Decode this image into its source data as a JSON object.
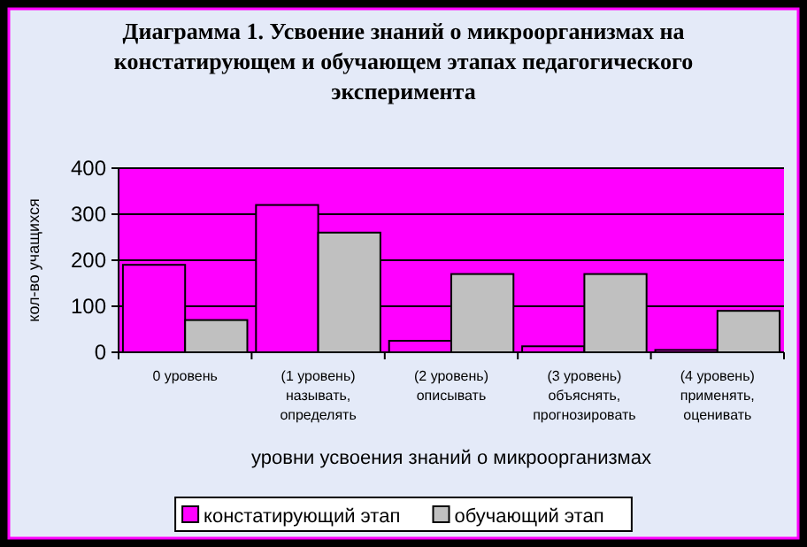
{
  "chart_data": {
    "type": "bar",
    "title": "Диаграмма 1. Усвоение знаний о микроорганизмах на констатирующем и обучающем этапах педагогического эксперимента",
    "xlabel": "уровни усвоения знаний о микроорганизмах",
    "ylabel": "кол-во учащихся",
    "categories": [
      "0 уровень",
      "(1 уровень) называть, определять",
      "(2 уровень) описывать",
      "(3 уровень) объяснять, прогнозировать",
      "(4 уровень) применять, оценивать"
    ],
    "series": [
      {
        "name": "констатирующий этап",
        "color": "#ff00ff",
        "values": [
          190,
          320,
          25,
          13,
          5
        ]
      },
      {
        "name": "обучающий этап",
        "color": "#c0c0c0",
        "values": [
          70,
          260,
          170,
          170,
          90
        ]
      }
    ],
    "ylim": [
      0,
      400
    ],
    "yticks": [
      0,
      100,
      200,
      300,
      400
    ],
    "grid": "y",
    "legend": "bottom"
  }
}
